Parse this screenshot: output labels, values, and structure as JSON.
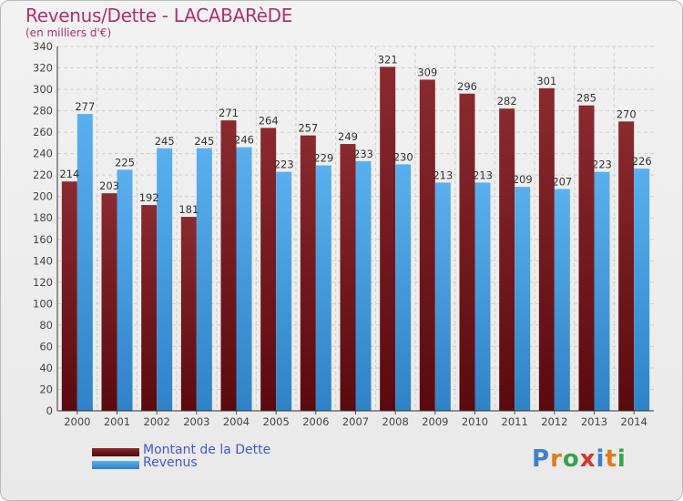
{
  "header": {
    "title": "Revenus/Dette - LACABARèDE",
    "subtitle": "(en milliers d'€)"
  },
  "chart_data": {
    "type": "bar",
    "categories": [
      "2000",
      "2001",
      "2002",
      "2003",
      "2004",
      "2005",
      "2006",
      "2007",
      "2008",
      "2009",
      "2010",
      "2011",
      "2012",
      "2013",
      "2014"
    ],
    "series": [
      {
        "name": "Montant de la Dette",
        "values": [
          214,
          203,
          192,
          181,
          271,
          264,
          257,
          249,
          321,
          309,
          296,
          282,
          301,
          285,
          270
        ],
        "color": "#7a1f24"
      },
      {
        "name": "Revenus",
        "values": [
          277,
          225,
          245,
          245,
          246,
          223,
          229,
          233,
          230,
          213,
          213,
          209,
          207,
          223,
          226
        ],
        "color": "#4fa4e4"
      }
    ],
    "ylim": [
      0,
      340
    ],
    "yticks": [
      0,
      20,
      40,
      60,
      80,
      100,
      120,
      140,
      160,
      180,
      200,
      220,
      240,
      260,
      280,
      300,
      320,
      340
    ],
    "grid": true,
    "data_labels": true,
    "legend_position": "bottom-left"
  },
  "legend": {
    "items": [
      {
        "label": "Montant de la Dette",
        "color": "#6a1a1c"
      },
      {
        "label": "Revenus",
        "color": "#4fa4e4"
      }
    ]
  },
  "logo": {
    "text": "Proxiti",
    "letter_colors": [
      "#3d7fd0",
      "#e07a1e",
      "#3aa34a",
      "#d6352e",
      "#3d7fd0",
      "#e07a1e",
      "#3aa34a"
    ]
  }
}
